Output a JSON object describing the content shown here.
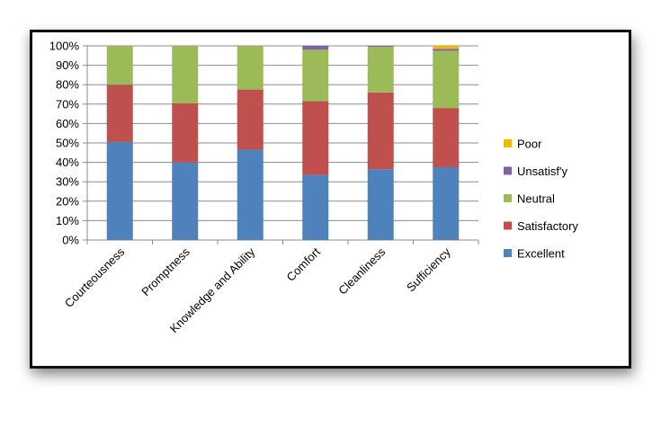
{
  "chart_data": {
    "type": "bar",
    "stacked": true,
    "percent": true,
    "title": "",
    "xlabel": "",
    "ylabel": "",
    "ylim": [
      0,
      100
    ],
    "y_ticks": [
      "0%",
      "10%",
      "20%",
      "30%",
      "40%",
      "50%",
      "60%",
      "70%",
      "80%",
      "90%",
      "100%"
    ],
    "grid": true,
    "legend_position": "right",
    "categories": [
      "Courteousness",
      "Promptness",
      "Knowledge and Ability",
      "Comfort",
      "Cleanliness",
      "Sufficiency"
    ],
    "series": [
      {
        "name": "Excellent",
        "color": "#4F81BD",
        "values": [
          50.5,
          40,
          46.5,
          33.5,
          36.5,
          37.5
        ]
      },
      {
        "name": "Satisfactory",
        "color": "#C0504D",
        "values": [
          29.5,
          30.5,
          31,
          38,
          39.5,
          30.5
        ]
      },
      {
        "name": "Neutral",
        "color": "#9BBB59",
        "values": [
          20,
          29.5,
          22.5,
          26.5,
          23.5,
          29.5
        ]
      },
      {
        "name": "Unsatisf'y",
        "color": "#8064A2",
        "values": [
          0,
          0,
          0,
          2,
          0.5,
          1
        ]
      },
      {
        "name": "Poor",
        "color": "#F5B800",
        "values": [
          0,
          0,
          0,
          0,
          0,
          1.5
        ]
      }
    ],
    "legend_order": [
      "Poor",
      "Unsatisf'y",
      "Neutral",
      "Satisfactory",
      "Excellent"
    ]
  }
}
